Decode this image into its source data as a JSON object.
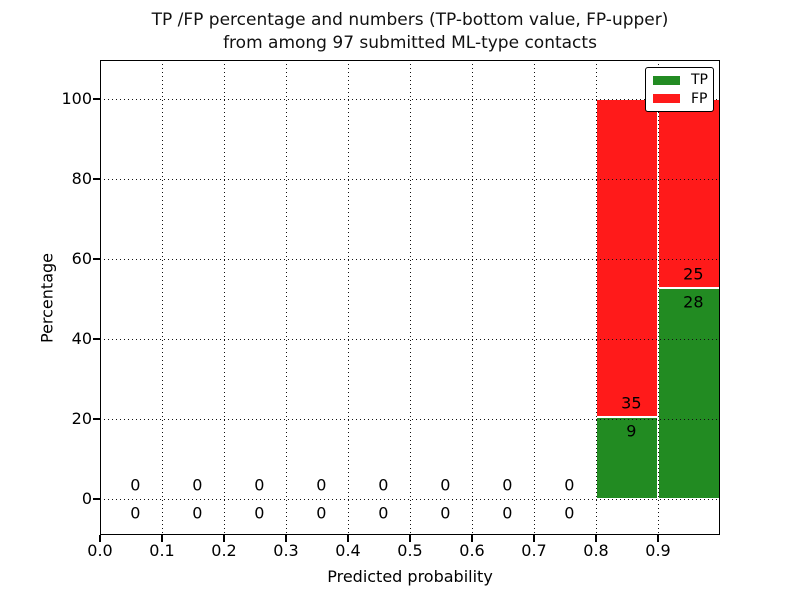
{
  "chart_data": {
    "type": "bar",
    "stacked": true,
    "title_line1": "TP /FP percentage and numbers (TP-bottom value, FP-upper)",
    "title_line2": "from among 97 submitted ML-type contacts",
    "xlabel": "Predicted probability",
    "ylabel": "Percentage",
    "total_submitted_contacts": 97,
    "xlim": [
      0.0,
      1.0
    ],
    "ylim": [
      -9,
      109.75
    ],
    "grid": true,
    "x_tick_values": [
      0.0,
      0.1,
      0.2,
      0.3,
      0.4,
      0.5,
      0.6,
      0.7,
      0.8,
      0.9
    ],
    "x_tick_labels": [
      "0.0",
      "0.1",
      "0.2",
      "0.3",
      "0.4",
      "0.5",
      "0.6",
      "0.7",
      "0.8",
      "0.9"
    ],
    "y_tick_values": [
      0,
      20,
      40,
      60,
      80,
      100
    ],
    "y_tick_labels": [
      "0",
      "20",
      "40",
      "60",
      "80",
      "100"
    ],
    "v_gridline_values": [
      0.1,
      0.2,
      0.3,
      0.4,
      0.5,
      0.6,
      0.7,
      0.8,
      0.9
    ],
    "h_gridline_values": [
      0,
      20,
      40,
      60,
      80,
      100
    ],
    "legend": {
      "position": "upper-right",
      "entries": [
        {
          "label": "TP",
          "color": "#228B22"
        },
        {
          "label": "FP",
          "color": "#FF1A1A"
        }
      ]
    },
    "colors": {
      "tp": "#228B22",
      "fp": "#FF1A1A"
    },
    "label_offset_pct": 3.5,
    "label_x_offset": 0.007,
    "bins": [
      {
        "x0": 0.0,
        "x1": 0.1,
        "tp": 0,
        "fp": 0,
        "tp_pct": 0,
        "fp_pct": 0
      },
      {
        "x0": 0.1,
        "x1": 0.2,
        "tp": 0,
        "fp": 0,
        "tp_pct": 0,
        "fp_pct": 0
      },
      {
        "x0": 0.2,
        "x1": 0.3,
        "tp": 0,
        "fp": 0,
        "tp_pct": 0,
        "fp_pct": 0
      },
      {
        "x0": 0.3,
        "x1": 0.4,
        "tp": 0,
        "fp": 0,
        "tp_pct": 0,
        "fp_pct": 0
      },
      {
        "x0": 0.4,
        "x1": 0.5,
        "tp": 0,
        "fp": 0,
        "tp_pct": 0,
        "fp_pct": 0
      },
      {
        "x0": 0.5,
        "x1": 0.6,
        "tp": 0,
        "fp": 0,
        "tp_pct": 0,
        "fp_pct": 0
      },
      {
        "x0": 0.6,
        "x1": 0.7,
        "tp": 0,
        "fp": 0,
        "tp_pct": 0,
        "fp_pct": 0
      },
      {
        "x0": 0.7,
        "x1": 0.8,
        "tp": 0,
        "fp": 0,
        "tp_pct": 0,
        "fp_pct": 0
      },
      {
        "x0": 0.8,
        "x1": 0.9,
        "tp": 9,
        "fp": 35,
        "tp_pct": 20.45,
        "fp_pct": 79.55
      },
      {
        "x0": 0.9,
        "x1": 1.0,
        "tp": 28,
        "fp": 25,
        "tp_pct": 52.83,
        "fp_pct": 47.17
      }
    ]
  }
}
